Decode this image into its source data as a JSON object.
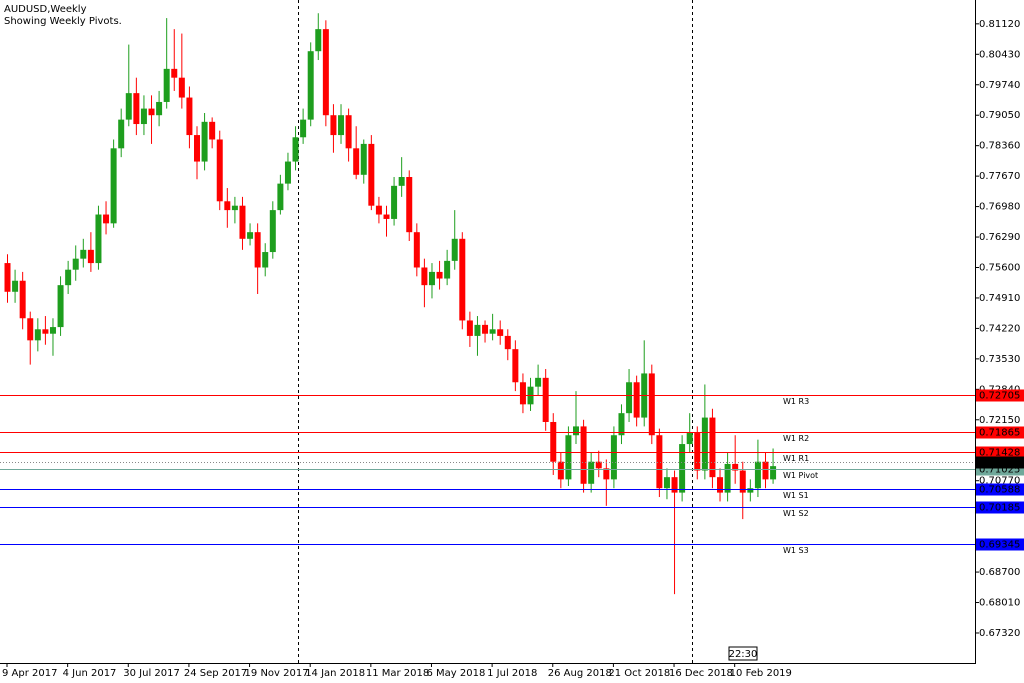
{
  "chart_data": {
    "type": "candlestick",
    "title": "AUDUSD,Weekly",
    "subtitle": "Showing Weekly Pivots.",
    "time_label": "22:30",
    "up_color": "#1e9e1e",
    "down_color": "#ff0000",
    "x": [
      "9 Apr 2017",
      null,
      null,
      null,
      null,
      null,
      null,
      null,
      "4 Jun 2017",
      null,
      null,
      null,
      null,
      null,
      null,
      null,
      "30 Jul 2017",
      null,
      null,
      null,
      null,
      null,
      null,
      null,
      "24 Sep 2017",
      null,
      null,
      null,
      null,
      null,
      null,
      null,
      "19 Nov 2017",
      null,
      null,
      null,
      null,
      null,
      null,
      null,
      "14 Jan 2018",
      null,
      null,
      null,
      null,
      null,
      null,
      null,
      "11 Mar 2018",
      null,
      null,
      null,
      null,
      null,
      null,
      null,
      "6 May 2018",
      null,
      null,
      null,
      null,
      null,
      null,
      null,
      "1 Jul 2018",
      null,
      null,
      null,
      null,
      null,
      null,
      null,
      "26 Aug 2018",
      null,
      null,
      null,
      null,
      null,
      null,
      null,
      "21 Oct 2018",
      null,
      null,
      null,
      null,
      null,
      null,
      null,
      "16 Dec 2018",
      null,
      null,
      null,
      null,
      null,
      null,
      null,
      "10 Feb 2019",
      null,
      null,
      null,
      null,
      null
    ],
    "open": [
      0.757,
      0.7505,
      0.753,
      0.7445,
      0.7395,
      0.742,
      0.741,
      0.7425,
      0.752,
      0.7555,
      0.758,
      0.76,
      0.757,
      0.768,
      0.766,
      0.783,
      0.7895,
      0.7955,
      0.7885,
      0.792,
      0.7905,
      0.7935,
      0.801,
      0.799,
      0.7945,
      0.786,
      0.78,
      0.789,
      0.785,
      0.771,
      0.769,
      0.77,
      0.7625,
      0.764,
      0.756,
      0.7595,
      0.769,
      0.775,
      0.78,
      0.7855,
      0.7895,
      0.805,
      0.81,
      0.7905,
      0.786,
      0.7905,
      0.783,
      0.777,
      0.784,
      0.77,
      0.768,
      0.767,
      0.7745,
      0.7765,
      0.764,
      0.756,
      0.752,
      0.755,
      0.7535,
      0.7575,
      0.7625,
      0.744,
      0.7405,
      0.743,
      0.741,
      0.742,
      0.7405,
      0.7375,
      0.73,
      0.725,
      0.729,
      0.731,
      0.721,
      0.712,
      0.708,
      0.718,
      0.72,
      0.707,
      0.712,
      0.7105,
      0.708,
      0.718,
      0.723,
      0.73,
      0.722,
      0.732,
      0.718,
      0.706,
      0.7085,
      0.705,
      0.716,
      0.7185,
      0.71,
      0.722,
      0.7085,
      0.705,
      0.7115,
      0.71,
      0.705,
      0.706,
      0.712,
      0.708
    ],
    "high": [
      0.759,
      0.7555,
      0.755,
      0.746,
      0.7445,
      0.745,
      0.7445,
      0.754,
      0.7575,
      0.761,
      0.7625,
      0.764,
      0.77,
      0.771,
      0.785,
      0.792,
      0.8065,
      0.799,
      0.795,
      0.795,
      0.796,
      0.8125,
      0.81,
      0.809,
      0.797,
      0.788,
      0.791,
      0.79,
      0.787,
      0.774,
      0.772,
      0.772,
      0.766,
      0.766,
      0.7615,
      0.771,
      0.777,
      0.782,
      0.788,
      0.792,
      0.807,
      0.8136,
      0.812,
      0.793,
      0.793,
      0.792,
      0.788,
      0.785,
      0.786,
      0.772,
      0.77,
      0.7765,
      0.781,
      0.778,
      0.766,
      0.758,
      0.757,
      0.7575,
      0.76,
      0.769,
      0.764,
      0.746,
      0.745,
      0.744,
      0.7455,
      0.744,
      0.742,
      0.7395,
      0.732,
      0.731,
      0.734,
      0.733,
      0.723,
      0.714,
      0.72,
      0.728,
      0.7215,
      0.714,
      0.7145,
      0.7125,
      0.72,
      0.725,
      0.733,
      0.7315,
      0.7395,
      0.734,
      0.7195,
      0.7105,
      0.71,
      0.718,
      0.723,
      0.72,
      0.7295,
      0.724,
      0.7105,
      0.714,
      0.718,
      0.712,
      0.708,
      0.717,
      0.714,
      0.715
    ],
    "low": [
      0.748,
      0.748,
      0.742,
      0.734,
      0.737,
      0.7385,
      0.736,
      0.7405,
      0.75,
      0.753,
      0.756,
      0.755,
      0.7555,
      0.7635,
      0.765,
      0.781,
      0.788,
      0.786,
      0.786,
      0.784,
      0.788,
      0.792,
      0.796,
      0.792,
      0.783,
      0.776,
      0.778,
      0.783,
      0.769,
      0.765,
      0.766,
      0.76,
      0.761,
      0.75,
      0.754,
      0.758,
      0.768,
      0.7735,
      0.778,
      0.784,
      0.788,
      0.803,
      0.788,
      0.782,
      0.784,
      0.78,
      0.776,
      0.775,
      0.769,
      0.766,
      0.763,
      0.7655,
      0.772,
      0.762,
      0.754,
      0.747,
      0.749,
      0.751,
      0.752,
      0.7555,
      0.742,
      0.738,
      0.736,
      0.739,
      0.7395,
      0.7385,
      0.735,
      0.728,
      0.723,
      0.7235,
      0.727,
      0.719,
      0.709,
      0.706,
      0.7065,
      0.716,
      0.705,
      0.705,
      0.7085,
      0.702,
      0.706,
      0.716,
      0.721,
      0.72,
      0.72,
      0.716,
      0.704,
      0.7035,
      0.682,
      0.703,
      0.714,
      0.708,
      0.708,
      0.706,
      0.703,
      0.703,
      0.707,
      0.699,
      0.703,
      0.704,
      0.706,
      0.707
    ],
    "close": [
      0.7505,
      0.753,
      0.7445,
      0.7395,
      0.742,
      0.741,
      0.7425,
      0.752,
      0.7555,
      0.758,
      0.76,
      0.757,
      0.768,
      0.766,
      0.783,
      0.7895,
      0.7955,
      0.7885,
      0.792,
      0.7905,
      0.7935,
      0.801,
      0.799,
      0.7945,
      0.786,
      0.78,
      0.789,
      0.785,
      0.771,
      0.769,
      0.77,
      0.7625,
      0.764,
      0.756,
      0.7595,
      0.769,
      0.775,
      0.78,
      0.7855,
      0.7895,
      0.805,
      0.81,
      0.7905,
      0.786,
      0.7905,
      0.783,
      0.777,
      0.784,
      0.77,
      0.768,
      0.767,
      0.7745,
      0.7765,
      0.764,
      0.756,
      0.752,
      0.755,
      0.7535,
      0.7575,
      0.7625,
      0.744,
      0.7405,
      0.743,
      0.741,
      0.742,
      0.7405,
      0.7375,
      0.73,
      0.725,
      0.729,
      0.731,
      0.721,
      0.712,
      0.708,
      0.718,
      0.72,
      0.707,
      0.712,
      0.7105,
      0.708,
      0.718,
      0.723,
      0.73,
      0.722,
      0.732,
      0.718,
      0.706,
      0.7085,
      0.705,
      0.716,
      0.7185,
      0.71,
      0.722,
      0.7085,
      0.705,
      0.7115,
      0.71,
      0.705,
      0.706,
      0.712,
      0.708,
      0.711
    ],
    "ylim": [
      0.6664,
      0.8166
    ],
    "yticks": [
      {
        "value": 0.8112,
        "label": "0.81120"
      },
      {
        "value": 0.8043,
        "label": "0.80430"
      },
      {
        "value": 0.7974,
        "label": "0.79740"
      },
      {
        "value": 0.7905,
        "label": "0.79050"
      },
      {
        "value": 0.7836,
        "label": "0.78360"
      },
      {
        "value": 0.7767,
        "label": "0.77670"
      },
      {
        "value": 0.7698,
        "label": "0.76980"
      },
      {
        "value": 0.7629,
        "label": "0.76290"
      },
      {
        "value": 0.756,
        "label": "0.75600"
      },
      {
        "value": 0.7491,
        "label": "0.74910"
      },
      {
        "value": 0.7422,
        "label": "0.74220"
      },
      {
        "value": 0.7353,
        "label": "0.73530"
      },
      {
        "value": 0.7284,
        "label": "0.72840"
      },
      {
        "value": 0.7215,
        "label": "0.72150"
      },
      {
        "value": 0.7077,
        "label": "0.70770"
      },
      {
        "value": 0.687,
        "label": "0.68700"
      },
      {
        "value": 0.6801,
        "label": "0.68010"
      },
      {
        "value": 0.6732,
        "label": "0.67320"
      }
    ],
    "pivots": [
      {
        "name": "W1 R3",
        "value": 0.72705,
        "color": "#ff0000"
      },
      {
        "name": "W1 R2",
        "value": 0.71865,
        "color": "#ff0000"
      },
      {
        "name": "W1 R1",
        "value": 0.71428,
        "color": "#ff0000"
      },
      {
        "name": "W1 Pivot",
        "value": 0.71025,
        "color": "#6fa89a"
      },
      {
        "name": "W1 S1",
        "value": 0.70588,
        "color": "#0000ff"
      },
      {
        "name": "W1 S2",
        "value": 0.70185,
        "color": "#0000ff"
      },
      {
        "name": "W1 S3",
        "value": 0.69345,
        "color": "#0000ff"
      }
    ],
    "current_price": 0.71198
  }
}
